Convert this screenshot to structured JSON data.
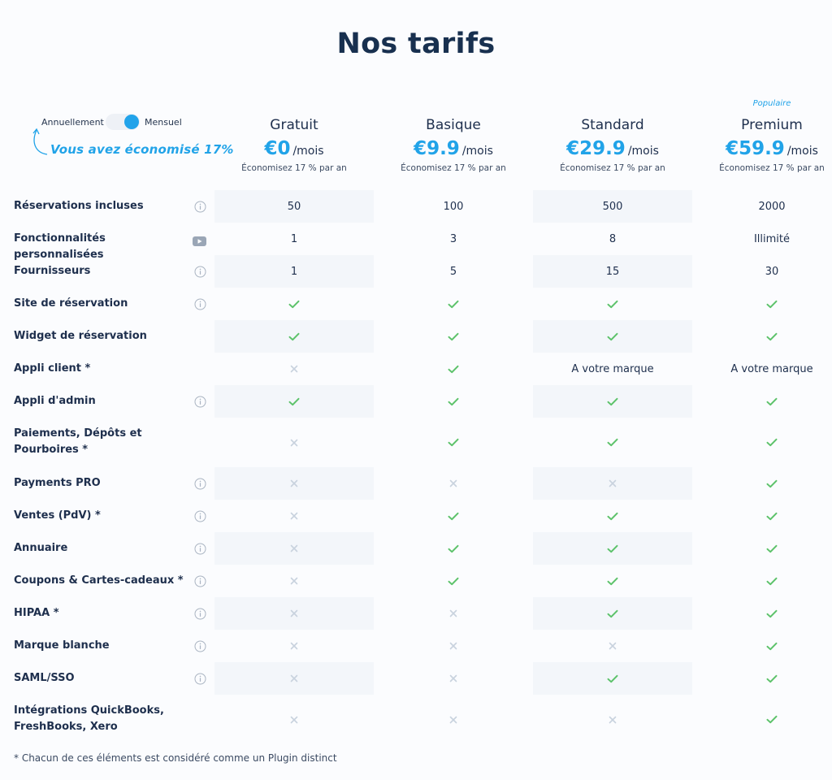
{
  "page_title": "Nos tarifs",
  "billing": {
    "annual_label": "Annuellement",
    "monthly_label": "Mensuel",
    "selected": "Mensuel",
    "savings_note": "Vous avez économisé 17%"
  },
  "colors": {
    "accent": "#21a3e8",
    "check": "#5cc26a",
    "cross": "#c8d2de",
    "shade": "#f3f6fa"
  },
  "plans": [
    {
      "name": "Gratuit",
      "badge": "",
      "price": "€0",
      "period": "/mois",
      "saving": "Économisez 17 % par an"
    },
    {
      "name": "Basique",
      "badge": "",
      "price": "€9.9",
      "period": "/mois",
      "saving": "Économisez 17 % par an"
    },
    {
      "name": "Standard",
      "badge": "",
      "price": "€29.9",
      "period": "/mois",
      "saving": "Économisez 17 % par an"
    },
    {
      "name": "Premium",
      "badge": "Populaire",
      "price": "€59.9",
      "period": "/mois",
      "saving": "Économisez 17 % par an"
    }
  ],
  "features": [
    {
      "label": "Réservations incluses",
      "icon": "info-icon",
      "values": [
        "50",
        "100",
        "500",
        "2000"
      ]
    },
    {
      "label": "Fonctionnalités personnalisées",
      "icon": "video-icon",
      "values": [
        "1",
        "3",
        "8",
        "Illimité"
      ]
    },
    {
      "label": "Fournisseurs",
      "icon": "info-icon",
      "values": [
        "1",
        "5",
        "15",
        "30"
      ]
    },
    {
      "label": "Site de réservation",
      "icon": "info-icon",
      "values": [
        "check",
        "check",
        "check",
        "check"
      ]
    },
    {
      "label": "Widget de réservation",
      "icon": "",
      "values": [
        "check",
        "check",
        "check",
        "check"
      ]
    },
    {
      "label": "Appli client *",
      "icon": "",
      "values": [
        "cross",
        "check",
        "A votre marque",
        "A votre marque"
      ]
    },
    {
      "label": "Appli d'admin",
      "icon": "info-icon",
      "values": [
        "check",
        "check",
        "check",
        "check"
      ]
    },
    {
      "label": "Paiements, Dépôts et Pourboires *",
      "icon": "",
      "values": [
        "cross",
        "check",
        "check",
        "check"
      ]
    },
    {
      "label": "Payments PRO",
      "icon": "info-icon",
      "values": [
        "cross",
        "cross",
        "cross",
        "check"
      ]
    },
    {
      "label": "Ventes (PdV) *",
      "icon": "info-icon",
      "values": [
        "cross",
        "check",
        "check",
        "check"
      ]
    },
    {
      "label": "Annuaire",
      "icon": "info-icon",
      "values": [
        "cross",
        "check",
        "check",
        "check"
      ]
    },
    {
      "label": "Coupons & Cartes-cadeaux *",
      "icon": "info-icon",
      "values": [
        "cross",
        "check",
        "check",
        "check"
      ]
    },
    {
      "label": "HIPAA *",
      "icon": "info-icon",
      "values": [
        "cross",
        "cross",
        "check",
        "check"
      ]
    },
    {
      "label": "Marque blanche",
      "icon": "info-icon",
      "values": [
        "cross",
        "cross",
        "cross",
        "check"
      ]
    },
    {
      "label": "SAML/SSO",
      "icon": "info-icon",
      "values": [
        "cross",
        "cross",
        "check",
        "check"
      ]
    },
    {
      "label": "Intégrations QuickBooks, FreshBooks, Xero",
      "icon": "",
      "values": [
        "cross",
        "cross",
        "cross",
        "check"
      ]
    }
  ],
  "footnote": "* Chacun de ces éléments est considéré comme un Plugin distinct"
}
